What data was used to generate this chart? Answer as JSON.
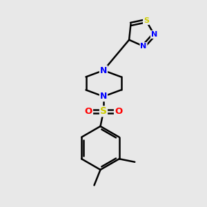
{
  "background_color": "#e8e8e8",
  "bond_color": "#000000",
  "N_color": "#0000ff",
  "S_color_thiadiazole": "#cccc00",
  "S_color_sulfonyl": "#cccc00",
  "O_color": "#ff0000",
  "figsize": [
    3.0,
    3.0
  ],
  "dpi": 100,
  "xlim": [
    0,
    10
  ],
  "ylim": [
    0,
    10
  ]
}
